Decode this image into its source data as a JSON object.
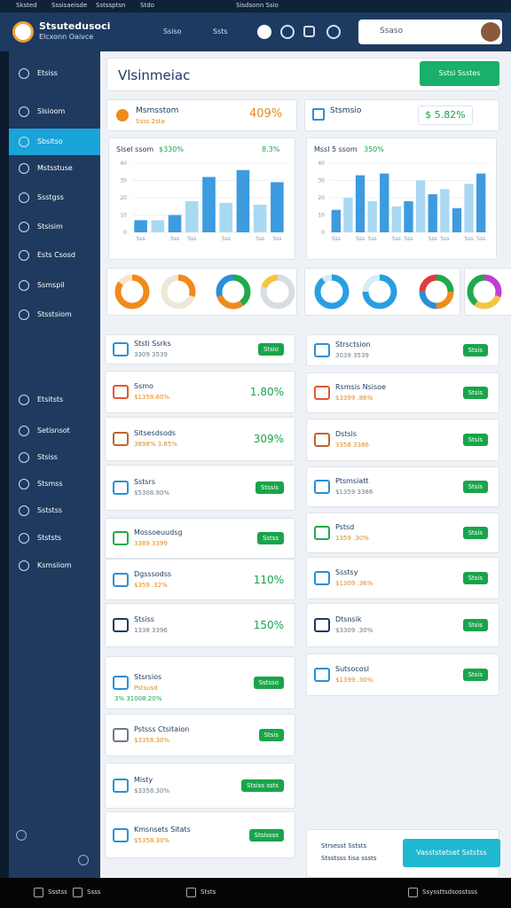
{
  "browser_bar": {
    "tabs": [
      "Sksted",
      "Sssisaeisde",
      "Sstssptsn",
      "Stdo"
    ],
    "address": "Sisdsonn Ssio"
  },
  "header": {
    "title": "Stsutedusoci",
    "subtitle": "Elcxonn Oaivce",
    "nav": [
      "Ssiso",
      "Ssts"
    ],
    "search": "Ssaso"
  },
  "sidebar": {
    "active": 2,
    "items": [
      "Etsiss",
      "Slsioom",
      "Sbsitso",
      "Mstsstuse",
      "Ssstgss",
      "Stsisim",
      "Ests Csosd",
      "Ssmspil",
      "Stsstsiom",
      "Etsitsts",
      "Setisnsot",
      "Stsiss",
      "Stsmss",
      "Sststss",
      "Stststs",
      "Ksmsiiom"
    ]
  },
  "page": {
    "title": "Vlsinmeiac",
    "button": "Sstsi Ssstes"
  },
  "stats": [
    {
      "title": "Msmsstom",
      "sub": "Ssss 2sta",
      "value": "409%"
    },
    {
      "title": "Stsmsio",
      "value": "$ 5.82%"
    }
  ],
  "charts": [
    {
      "type": "bar",
      "title": "Slsel ssom",
      "value": "$330%",
      "change": "8.3%",
      "colors": [
        "#3d9be0",
        "#a9d8f3"
      ],
      "ylim": [
        0,
        40
      ],
      "yticks": [
        0,
        10,
        20,
        30,
        40
      ],
      "categories": [
        "Sss",
        null,
        "Sss",
        "Sss",
        null,
        "Sss",
        null,
        "Sss",
        "Sss"
      ],
      "values": [
        7,
        7,
        10,
        18,
        32,
        17,
        36,
        16,
        29
      ]
    },
    {
      "type": "bar",
      "title": "Mssl 5 ssom",
      "value": "350%",
      "change": "",
      "colors": [
        "#3d9be0",
        "#a9d8f3"
      ],
      "ylim": [
        0,
        40
      ],
      "yticks": [
        0,
        10,
        20,
        30,
        40
      ],
      "categories": [
        "Sss",
        null,
        "Sss",
        "Sss",
        null,
        "Sss",
        "Sss",
        null,
        "Sss",
        "Sss",
        null,
        "Sss",
        "Sss"
      ],
      "values": [
        13,
        20,
        33,
        18,
        34,
        15,
        18,
        30,
        22,
        25,
        14,
        28,
        34
      ]
    }
  ],
  "donuts": [
    [
      {
        "value": 85,
        "color": "#f08a1c"
      },
      {
        "value": 15,
        "color": "#fde3c6"
      }
    ],
    [
      {
        "value": 30,
        "color": "#f08a1c"
      },
      {
        "value": 70,
        "color": "#efe6d8"
      }
    ],
    [
      {
        "value": 40,
        "color": "#1faa4b"
      },
      {
        "value": 30,
        "color": "#f08a1c"
      },
      {
        "value": 30,
        "color": "#2a8fd8"
      }
    ],
    [
      {
        "value": 80,
        "color": "#d8dde3"
      },
      {
        "value": 20,
        "color": "#f5c542"
      }
    ],
    [
      {
        "value": 90,
        "color": "#2a9ee0"
      },
      {
        "value": 10,
        "color": "#d6ecf8"
      }
    ],
    [
      {
        "value": 75,
        "color": "#2a9ee0"
      },
      {
        "value": 25,
        "color": "#d6ecf8"
      }
    ],
    [
      {
        "value": 25,
        "color": "#1faa4b"
      },
      {
        "value": 25,
        "color": "#f08a1c"
      },
      {
        "value": 25,
        "color": "#2a8fd8"
      },
      {
        "value": 25,
        "color": "#e23b3b"
      }
    ],
    [
      {
        "value": 30,
        "color": "#c03fd0"
      },
      {
        "value": 30,
        "color": "#f5c542"
      },
      {
        "value": 40,
        "color": "#1faa4b"
      }
    ]
  ],
  "lists": [
    [
      {
        "title": "Ststi Ssrks",
        "sub": "3309 3539",
        "badge": "Stsio"
      },
      {
        "title": "Ssmo",
        "sub": "$1358.60%",
        "value": "1.80%"
      },
      {
        "title": "Sitsesdsods",
        "sub": "3898% 3.85%",
        "value": "309%"
      },
      {
        "title": "Sstsrs",
        "sub": "$5308.90%",
        "badge": "Stssis"
      },
      {
        "title": "Mossoeuudsg",
        "sub": "3389 3399",
        "badge": "Sstss"
      },
      {
        "title": "Dgsssodss",
        "sub": "$359 .32%",
        "value": "110%"
      },
      {
        "title": "Stsiss",
        "sub": "1338 3396",
        "value": "150%"
      },
      {
        "title": "Stsrsios",
        "sub": "Pstsusd",
        "sub2": "3% 31008.20%",
        "badge": "Sstsso"
      },
      {
        "title": "Pstsss Ctsitaion",
        "sub": "$3358.30%",
        "badge": "Stsis"
      },
      {
        "title": "Misty",
        "sub": "$3358.30%",
        "badge": "Stsiss ssts"
      },
      {
        "title": "Kmsnsets Sitats",
        "sub": "$5358.30%",
        "badge": "Stsissss"
      }
    ],
    [
      {
        "title": "Strsctsion",
        "sub": "3039 3539",
        "badge": "Stsis"
      },
      {
        "title": "Rsmsis Nsisoe",
        "sub": "$3399 .86%",
        "badge": "Stsis"
      },
      {
        "title": "Dstsls",
        "sub": "3358 3386",
        "badge": "Stsis"
      },
      {
        "title": "Ptsmsiatt",
        "sub": "$1359 3386",
        "badge": "Stsis"
      },
      {
        "title": "Pstsd",
        "sub": "1359 .30%",
        "badge": "Stsis"
      },
      {
        "title": "Ssstsy",
        "sub": "$1309 .36%",
        "badge": "Stsis"
      },
      {
        "title": "Dtsnsik",
        "sub": "$3309 .30%",
        "badge": "Stsis"
      },
      {
        "title": "Sutsocosl",
        "sub": "$1399 .30%",
        "badge": "Stsis"
      }
    ]
  ],
  "footer_panel": {
    "links": [
      "Strsesst Sststs",
      "Stsstsss tisa sssts"
    ],
    "button": "Vasststetset Sststss"
  },
  "taskbar": {
    "items": [
      "Ssstss",
      "Ssss",
      "Ststs",
      "Ssyssttsdsosstsss"
    ]
  }
}
